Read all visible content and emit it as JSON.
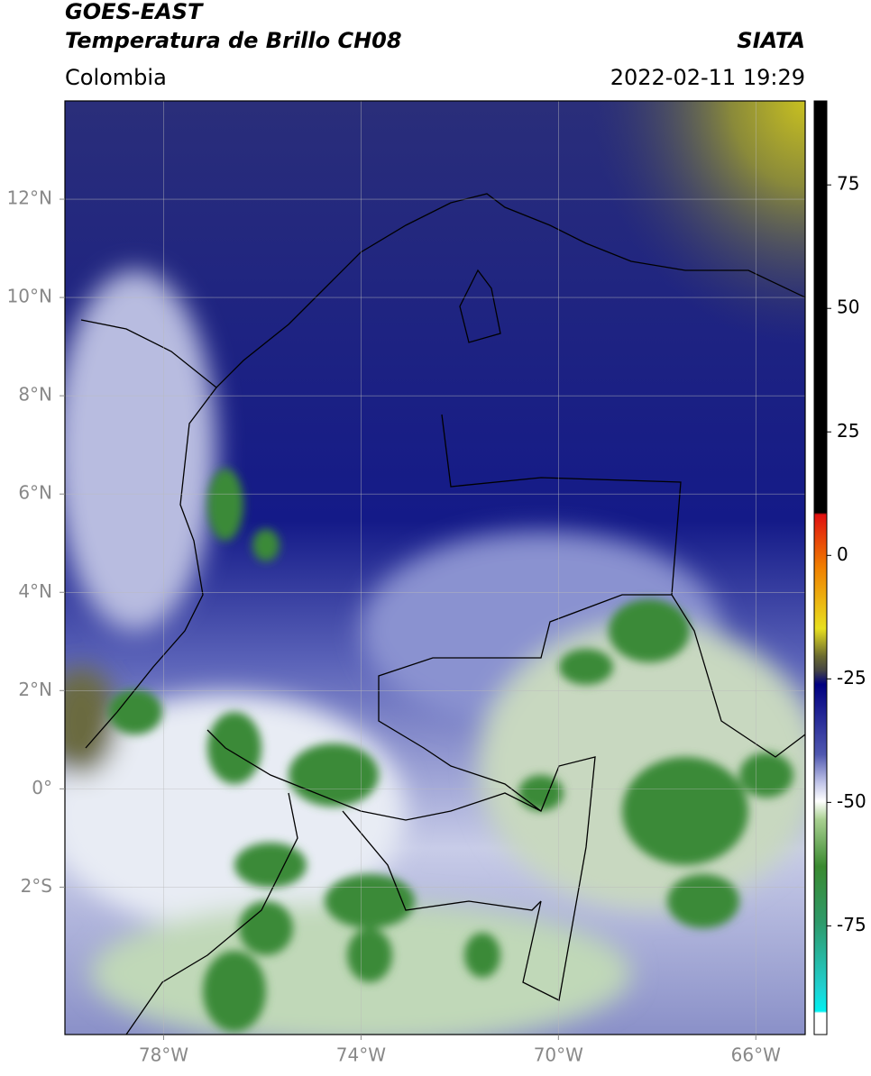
{
  "header": {
    "title_line1": "GOES-EAST",
    "title_line2": "Temperatura de Brillo CH08",
    "source": "SIATA",
    "region": "Colombia",
    "datetime": "2022-02-11 19:29"
  },
  "map": {
    "xlim": [
      -80,
      -65
    ],
    "ylim": [
      -5,
      14
    ],
    "xticks": [
      {
        "value": -78,
        "label": "78°W"
      },
      {
        "value": -74,
        "label": "74°W"
      },
      {
        "value": -70,
        "label": "70°W"
      },
      {
        "value": -66,
        "label": "66°W"
      }
    ],
    "yticks": [
      {
        "value": 12,
        "label": "12°N"
      },
      {
        "value": 10,
        "label": "10°N"
      },
      {
        "value": 8,
        "label": "8°N"
      },
      {
        "value": 6,
        "label": "6°N"
      },
      {
        "value": 4,
        "label": "4°N"
      },
      {
        "value": 2,
        "label": "2°N"
      },
      {
        "value": 0,
        "label": "0°"
      },
      {
        "value": -2,
        "label": "2°S"
      }
    ],
    "grid": true
  },
  "colorbar": {
    "lim": [
      -97,
      92
    ],
    "ticks": [
      75,
      50,
      25,
      0,
      -25,
      -50,
      -75
    ]
  }
}
